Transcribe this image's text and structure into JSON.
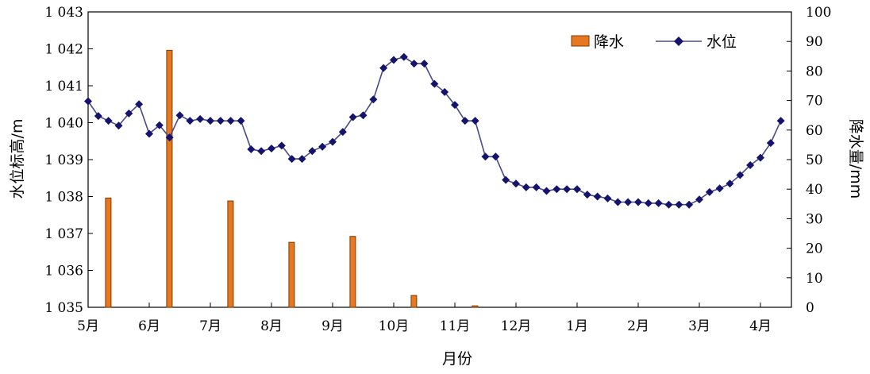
{
  "chart_data": {
    "type": "bar+line",
    "xlabel": "月份",
    "ylabel_left": "水位标高/m",
    "ylabel_right": "降水量/mm",
    "left_axis": {
      "min": 1035,
      "max": 1043,
      "ticks": [
        1035,
        1036,
        1037,
        1038,
        1039,
        1040,
        1041,
        1042,
        1043
      ],
      "tick_labels": [
        "1 035",
        "1 036",
        "1 037",
        "1 038",
        "1 039",
        "1 040",
        "1 041",
        "1 042",
        "1 043"
      ]
    },
    "right_axis": {
      "min": 0,
      "max": 100,
      "ticks": [
        0,
        10,
        20,
        30,
        40,
        50,
        60,
        70,
        80,
        90,
        100
      ],
      "tick_labels": [
        "0",
        "10",
        "20",
        "30",
        "40",
        "50",
        "60",
        "70",
        "80",
        "90",
        "100"
      ]
    },
    "month_labels": [
      "5月",
      "6月",
      "7月",
      "8月",
      "9月",
      "10月",
      "11月",
      "12月",
      "1月",
      "2月",
      "3月",
      "4月"
    ],
    "legend": {
      "placement": "top-right",
      "precip_label": "降水",
      "level_label": "水位"
    },
    "colors": {
      "precip_fill": "#e87722",
      "precip_stroke": "#7a3d00",
      "level_line": "#4a4a8a",
      "level_marker": "#14146e"
    },
    "series": [
      {
        "name": "降水",
        "axis": "right",
        "month_positions": [
          0.33,
          1.33,
          2.33,
          3.33,
          4.33,
          5.33,
          6.33
        ],
        "values": [
          37,
          87,
          36,
          22,
          24,
          4,
          0.5
        ]
      },
      {
        "name": "水位",
        "axis": "left",
        "month_positions": [
          0,
          0.167,
          0.333,
          0.5,
          0.667,
          0.833,
          1,
          1.167,
          1.333,
          1.5,
          1.667,
          1.833,
          2,
          2.167,
          2.333,
          2.5,
          2.667,
          2.833,
          3,
          3.167,
          3.333,
          3.5,
          3.667,
          3.833,
          4,
          4.167,
          4.333,
          4.5,
          4.667,
          4.833,
          5,
          5.167,
          5.333,
          5.5,
          5.667,
          5.833,
          6,
          6.167,
          6.333,
          6.5,
          6.667,
          6.833,
          7,
          7.167,
          7.333,
          7.5,
          7.667,
          7.833,
          8,
          8.167,
          8.333,
          8.5,
          8.667,
          8.833,
          9,
          9.167,
          9.333,
          9.5,
          9.667,
          9.833,
          10,
          10.167,
          10.333,
          10.5,
          10.667,
          10.833,
          11,
          11.167,
          11.333
        ],
        "values": [
          1040.58,
          1040.18,
          1040.05,
          1039.92,
          1040.25,
          1040.5,
          1039.7,
          1039.93,
          1039.6,
          1040.2,
          1040.05,
          1040.1,
          1040.05,
          1040.05,
          1040.05,
          1040.05,
          1039.28,
          1039.23,
          1039.3,
          1039.38,
          1039.02,
          1039.02,
          1039.23,
          1039.35,
          1039.48,
          1039.75,
          1040.15,
          1040.2,
          1040.63,
          1041.48,
          1041.7,
          1041.78,
          1041.6,
          1041.6,
          1041.05,
          1040.83,
          1040.48,
          1040.05,
          1040.05,
          1039.08,
          1039.08,
          1038.45,
          1038.35,
          1038.25,
          1038.25,
          1038.15,
          1038.2,
          1038.2,
          1038.2,
          1038.05,
          1038.0,
          1037.95,
          1037.85,
          1037.85,
          1037.85,
          1037.82,
          1037.82,
          1037.78,
          1037.78,
          1037.78,
          1037.92,
          1038.12,
          1038.22,
          1038.35,
          1038.58,
          1038.85,
          1039.05,
          1039.45,
          1040.05
        ]
      }
    ]
  }
}
